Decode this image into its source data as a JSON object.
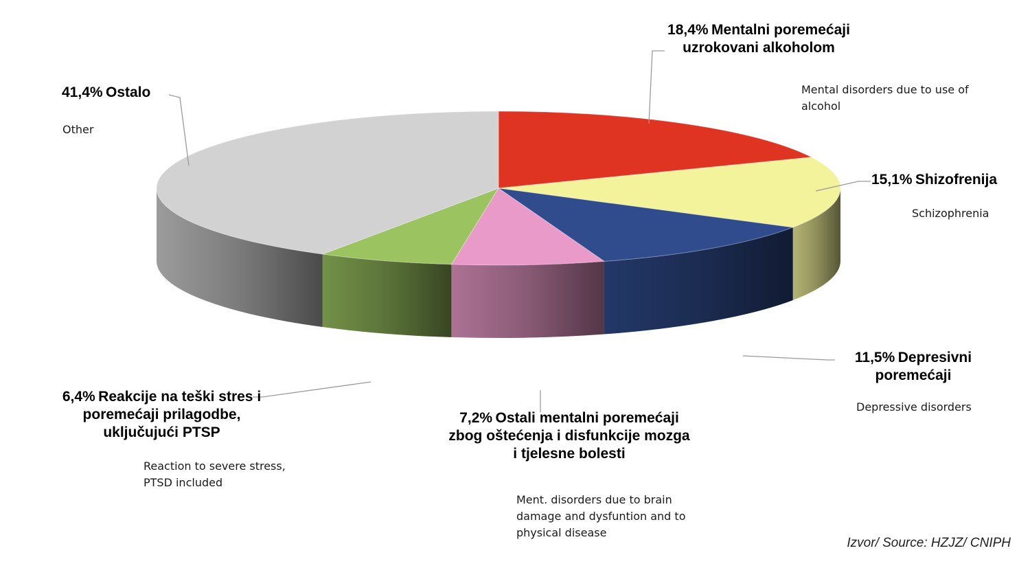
{
  "chart_data": {
    "type": "pie",
    "slices": [
      {
        "pct_label": "18,4%",
        "value": 18.4,
        "label_hr": "Mentalni poremećaji uzrokovani alkoholom",
        "label_en": "Mental disorders due to use of alcohol",
        "color": "#e03423"
      },
      {
        "pct_label": "15,1%",
        "value": 15.1,
        "label_hr": "Shizofrenija",
        "label_en": "Schizophrenia",
        "color": "#f3f39c"
      },
      {
        "pct_label": "11,5%",
        "value": 11.5,
        "label_hr": "Depresivni poremećaji",
        "label_en": "Depressive disorders",
        "color": "#304c8c"
      },
      {
        "pct_label": "7,2%",
        "value": 7.2,
        "label_hr": "Ostali mentalni poremećaji zbog oštećenja i disfunkcije mozga i tjelesne bolesti",
        "label_en": "Ment. disorders due to brain damage and dysfuntion and to physical disease",
        "color": "#e99ac8"
      },
      {
        "pct_label": "6,4%",
        "value": 6.4,
        "label_hr": "Reakcije na teški stres i poremećaji prilagodbe, uključujući PTSP",
        "label_en": "Reaction to severe stress, PTSD included",
        "color": "#9bc461"
      },
      {
        "pct_label": "41,4%",
        "value": 41.4,
        "label_hr": "Ostalo",
        "label_en": "Other",
        "color": "#d2d2d2"
      }
    ]
  },
  "source": "Izvor/ Source: HZJZ/ CNIPH"
}
